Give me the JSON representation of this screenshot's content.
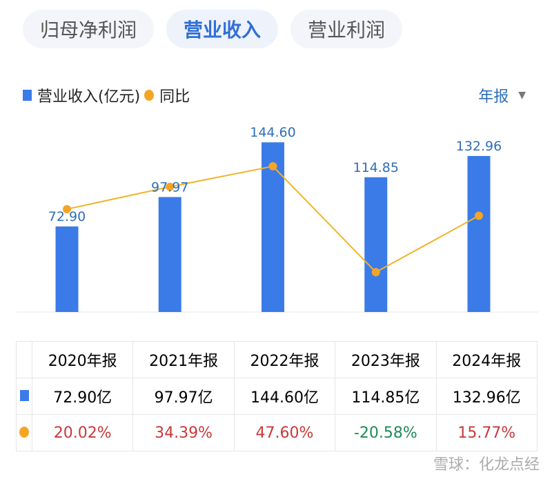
{
  "tabs": [
    {
      "label": "归母净利润"
    },
    {
      "label": "营业收入",
      "active": true
    },
    {
      "label": "营业利润"
    }
  ],
  "legend": {
    "bar": "营业收入(亿元)",
    "line": "同比"
  },
  "period": {
    "label": "年报"
  },
  "colors": {
    "bar": "#3b7be8",
    "line": "#f0b429",
    "dot": "#f5a524",
    "positive": "#c8383c",
    "negative": "#1e8a5a"
  },
  "chart_data": {
    "type": "bar+line",
    "categories": [
      "2020年报",
      "2021年报",
      "2022年报",
      "2023年报",
      "2024年报"
    ],
    "series": [
      {
        "name": "营业收入(亿元)",
        "type": "bar",
        "values": [
          72.9,
          97.97,
          144.6,
          114.85,
          132.96
        ],
        "labels": [
          "72.90",
          "97.97",
          "144.60",
          "114.85",
          "132.96"
        ]
      },
      {
        "name": "同比",
        "type": "line",
        "values": [
          20.02,
          34.39,
          47.6,
          -20.58,
          15.77
        ]
      }
    ]
  },
  "table": {
    "headers": [
      "2020年报",
      "2021年报",
      "2022年报",
      "2023年报",
      "2024年报"
    ],
    "revenue": [
      "72.90亿",
      "97.97亿",
      "144.60亿",
      "114.85亿",
      "132.96亿"
    ],
    "yoy": [
      "20.02%",
      "34.39%",
      "47.60%",
      "-20.58%",
      "15.77%"
    ]
  },
  "watermark": "雪球：化龙点经"
}
